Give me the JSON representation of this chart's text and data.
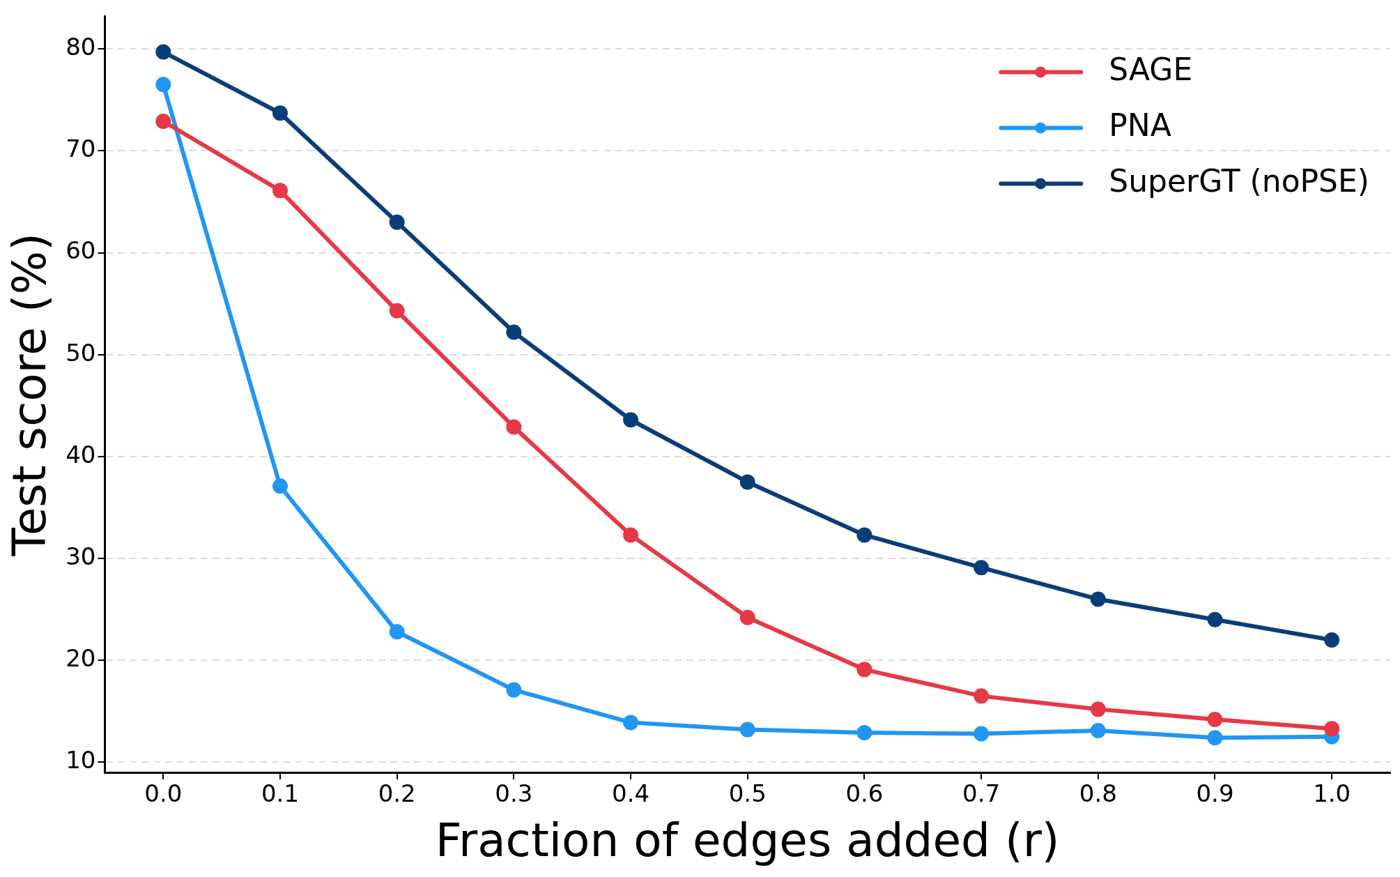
{
  "chart_data": {
    "type": "line",
    "xlabel": "Fraction of edges added (r)",
    "ylabel": "Test score (%)",
    "x": [
      0.0,
      0.1,
      0.2,
      0.3,
      0.4,
      0.5,
      0.6,
      0.7,
      0.8,
      0.9,
      1.0
    ],
    "series": [
      {
        "name": "SAGE",
        "color": "#e63946",
        "values": [
          72.9,
          66.1,
          54.3,
          42.9,
          32.3,
          24.2,
          19.1,
          16.5,
          15.2,
          14.2,
          13.3
        ]
      },
      {
        "name": "PNA",
        "color": "#2196f3",
        "values": [
          76.5,
          37.1,
          22.8,
          17.1,
          13.9,
          13.2,
          12.9,
          12.8,
          13.1,
          12.4,
          12.5
        ]
      },
      {
        "name": "SuperGT (noPSE)",
        "color": "#0b3d78",
        "values": [
          79.7,
          73.7,
          63.0,
          52.2,
          43.6,
          37.5,
          32.3,
          29.1,
          26.0,
          24.0,
          22.0
        ]
      }
    ],
    "xlim": [
      -0.05,
      1.05
    ],
    "xticks": [
      {
        "value": 0,
        "label": "0.0"
      },
      0.1,
      0.2,
      0.3,
      0.4,
      0.5,
      0.6,
      0.7,
      0.8,
      0.9,
      {
        "value": 1,
        "label": "1.0"
      }
    ],
    "ylim": [
      9,
      83.2
    ],
    "yticks": [
      10,
      20,
      30,
      40,
      50,
      60,
      70,
      80
    ],
    "grid": "y",
    "legend": "top right",
    "marker": "circle",
    "line_style": "solid"
  }
}
